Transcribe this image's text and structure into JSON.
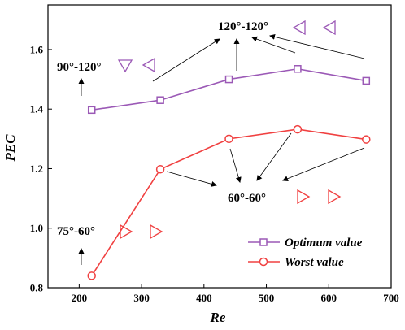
{
  "chart_data": {
    "type": "line",
    "xlabel": "Re",
    "ylabel": "PEC",
    "xlim": [
      150,
      700
    ],
    "ylim": [
      0.8,
      1.75
    ],
    "xticks": [
      200,
      300,
      400,
      500,
      600,
      700
    ],
    "yticks": [
      0.8,
      1.0,
      1.2,
      1.4,
      1.6
    ],
    "x_tick_labels": [
      "200",
      "300",
      "400",
      "500",
      "600",
      "700"
    ],
    "y_tick_labels": [
      "0.8",
      "1.0",
      "1.2",
      "1.4",
      "1.6"
    ],
    "x": [
      220,
      330,
      440,
      550,
      660
    ],
    "series": [
      {
        "name": "Optimum value",
        "values": [
          1.397,
          1.43,
          1.5,
          1.535,
          1.495
        ],
        "color": "#9B59B6",
        "marker": "square"
      },
      {
        "name": "Worst value",
        "values": [
          0.84,
          1.198,
          1.3,
          1.332,
          1.298
        ],
        "color": "#F04040",
        "marker": "circle"
      }
    ],
    "legend_position": "bottom-right",
    "annotations": [
      {
        "text": "90°-120°",
        "color": "#9B59B6",
        "symbol": "down-triangle, left-triangle"
      },
      {
        "text": "120°-120°",
        "color": "#9B59B6",
        "symbol": "left-triangle, left-triangle"
      },
      {
        "text": "60°-60°",
        "color": "#F04040",
        "symbol": "right-triangle, right-triangle"
      },
      {
        "text": "75°-60°",
        "color": "#F04040",
        "symbol": "right-triangle, right-triangle"
      }
    ]
  }
}
